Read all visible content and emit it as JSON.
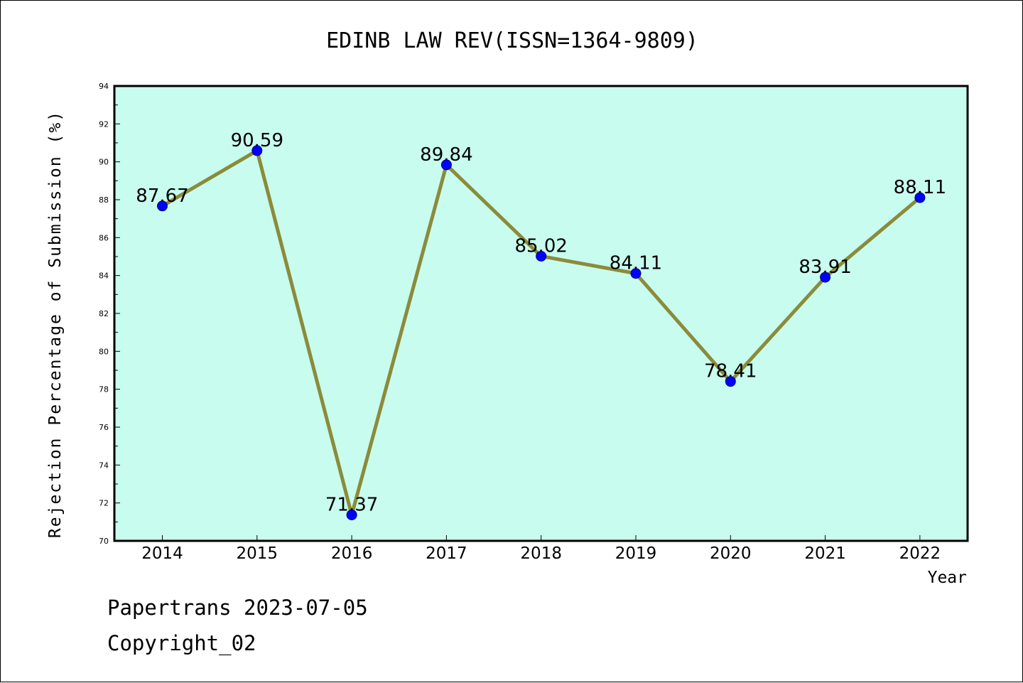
{
  "chart_data": {
    "type": "line",
    "title": "EDINB LAW REV(ISSN=1364-9809)",
    "xlabel": "Year",
    "ylabel": "Rejection Percentage of Submission (%)",
    "categories": [
      "2014",
      "2015",
      "2016",
      "2017",
      "2018",
      "2019",
      "2020",
      "2021",
      "2022"
    ],
    "series": [
      {
        "values": [
          87.67,
          90.59,
          71.37,
          89.84,
          85.02,
          84.11,
          78.41,
          83.91,
          88.11
        ],
        "labels": [
          "87.67",
          "90.59",
          "71.37",
          "89.84",
          "85.02",
          "84.11",
          "78.41",
          "83.91",
          "88.11"
        ]
      }
    ],
    "ylim": [
      70,
      94
    ],
    "yticks": [
      "70",
      "72",
      "74",
      "76",
      "78",
      "80",
      "82",
      "84",
      "86",
      "88",
      "90",
      "92",
      "94"
    ],
    "grid": false,
    "colors": {
      "plot_background": "#c8fcee",
      "line": "#8b8b3a",
      "marker": "#0000ff"
    }
  },
  "footer": {
    "line1": "Papertrans 2023-07-05",
    "line2": "Copyright_02"
  }
}
